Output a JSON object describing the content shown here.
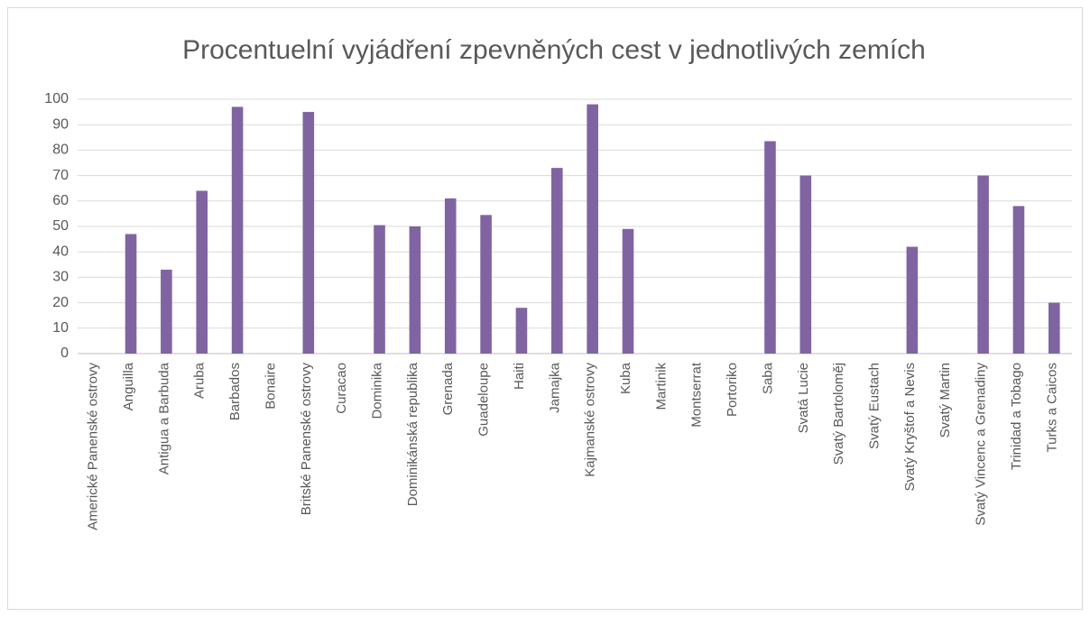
{
  "chart_data": {
    "type": "bar",
    "title": "Procentuelní vyjádření zpevněných cest v jednotlivých zemích",
    "categories": [
      "Americké Panenské ostrovy",
      "Anguilla",
      "Antigua a Barbuda",
      "Aruba",
      "Barbados",
      "Bonaire",
      "Britské Panenské ostrovy",
      "Curacao",
      "Dominika",
      "Dominikánská republika",
      "Grenada",
      "Guadeloupe",
      "Haiti",
      "Jamajka",
      "Kajmanské ostrovy",
      "Kuba",
      "Martinik",
      "Montserrat",
      "Portoriko",
      "Saba",
      "Svatá Lucie",
      "Svatý Bartoloměj",
      "Svatý Eustach",
      "Svatý Kryštof a Nevis",
      "Svatý Martin",
      "Svatý Vincenc a Grenadiny",
      "Trinidad a Tobago",
      "Turks a Caicos"
    ],
    "values": [
      null,
      47,
      33,
      64,
      97,
      null,
      95,
      null,
      50.5,
      50,
      61,
      54.5,
      18,
      73,
      98,
      49,
      null,
      null,
      null,
      83.5,
      70,
      null,
      null,
      42,
      null,
      70,
      58,
      20
    ],
    "color": "#8064a2",
    "ylim": [
      0,
      100
    ],
    "yticks": [
      0,
      10,
      20,
      30,
      40,
      50,
      60,
      70,
      80,
      90,
      100
    ],
    "grid": true
  }
}
